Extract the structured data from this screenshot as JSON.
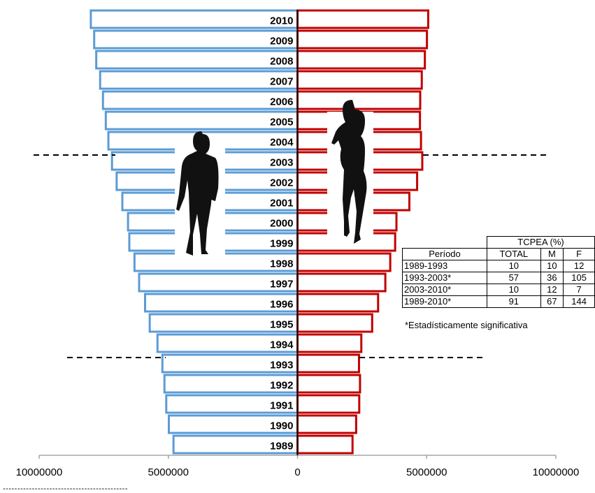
{
  "chart_data": {
    "type": "bar",
    "subtype": "population-pyramid",
    "categories": [
      "1989",
      "1990",
      "1991",
      "1992",
      "1993",
      "1994",
      "1995",
      "1996",
      "1997",
      "1998",
      "1999",
      "2000",
      "2001",
      "2002",
      "2003",
      "2004",
      "2005",
      "2006",
      "2007",
      "2008",
      "2009",
      "2010"
    ],
    "series": [
      {
        "color": "#5b9bd5",
        "side": "left",
        "values": [
          4800000,
          4980000,
          5080000,
          5150000,
          5230000,
          5420000,
          5720000,
          5900000,
          6130000,
          6310000,
          6510000,
          6560000,
          6780000,
          7000000,
          7180000,
          7320000,
          7420000,
          7530000,
          7640000,
          7790000,
          7870000,
          8000000
        ]
      },
      {
        "color": "#c00000",
        "side": "right",
        "values": [
          2130000,
          2270000,
          2390000,
          2420000,
          2380000,
          2470000,
          2890000,
          3120000,
          3400000,
          3590000,
          3780000,
          3830000,
          4330000,
          4630000,
          4830000,
          4780000,
          4740000,
          4750000,
          4810000,
          4930000,
          5010000,
          5060000
        ]
      }
    ],
    "x_tick_labels": [
      "10000000",
      "5000000",
      "0",
      "5000000",
      "10000000"
    ],
    "x_ticks": [
      -10000000,
      -5000000,
      0,
      5000000,
      10000000
    ],
    "xlim": [
      -10000000,
      10000000
    ],
    "reference_lines": [
      "2003",
      "1993"
    ],
    "grid": false,
    "legend": "none"
  },
  "table": {
    "header_group": "TCPEA (%)",
    "columns": [
      "Período",
      "TOTAL",
      "M",
      "F"
    ],
    "rows": [
      [
        "1989-1993",
        "10",
        "10",
        "12"
      ],
      [
        "1993-2003*",
        "57",
        "36",
        "105"
      ],
      [
        "2003-2010*",
        "10",
        "12",
        "7"
      ],
      [
        "1989-2010*",
        "91",
        "67",
        "144"
      ]
    ],
    "note": "*Estadísticamente significativa"
  },
  "footer_rule": "-------------------------------------------"
}
